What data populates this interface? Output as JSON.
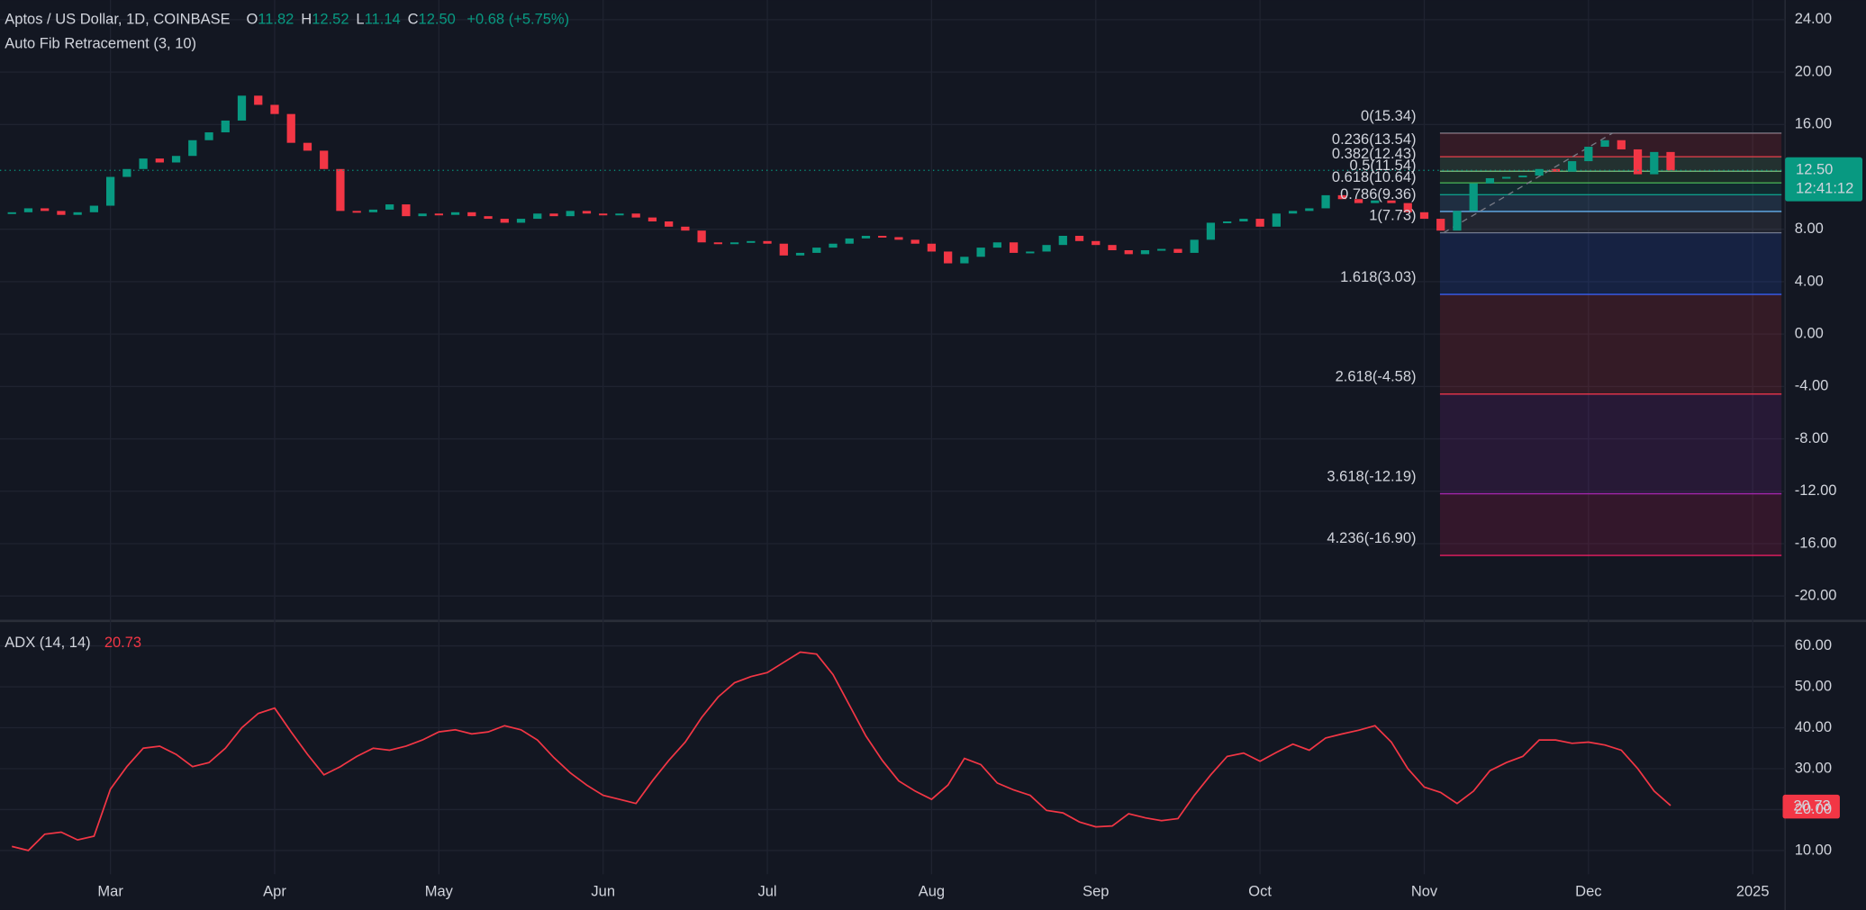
{
  "chart_data": [
    {
      "type": "candlestick",
      "title": "Aptos / US Dollar, 1D, COINBASE",
      "ohlc": [
        {
          "key": "O",
          "value": "11.82"
        },
        {
          "key": "H",
          "value": "12.52"
        },
        {
          "key": "L",
          "value": "11.14"
        },
        {
          "key": "C",
          "value": "12.50"
        }
      ],
      "change": "+0.68 (+5.75%)",
      "indicator": "Auto Fib Retracement (3, 10)",
      "categories": [
        null,
        null,
        null,
        null,
        null,
        null,
        "Mar",
        null,
        null,
        null,
        null,
        null,
        null,
        null,
        null,
        null,
        "Apr",
        null,
        null,
        null,
        null,
        null,
        null,
        null,
        null,
        null,
        "May",
        null,
        null,
        null,
        null,
        null,
        null,
        null,
        null,
        null,
        "Jun",
        null,
        null,
        null,
        null,
        null,
        null,
        null,
        null,
        null,
        "Jul",
        null,
        null,
        null,
        null,
        null,
        null,
        null,
        null,
        null,
        "Aug",
        null,
        null,
        null,
        null,
        null,
        null,
        null,
        null,
        null,
        "Sep",
        null,
        null,
        null,
        null,
        null,
        null,
        null,
        null,
        null,
        "Oct",
        null,
        null,
        null,
        null,
        null,
        null,
        null,
        null,
        null,
        "Nov",
        null,
        null,
        null,
        null,
        null,
        null,
        null,
        null,
        null,
        "Dec",
        null,
        null,
        null,
        null,
        null,
        null,
        null,
        null,
        null,
        "2025"
      ],
      "values": [
        9.3,
        9.6,
        9.4,
        9.1,
        9.3,
        9.8,
        12.0,
        12.6,
        13.4,
        13.1,
        13.6,
        14.8,
        15.4,
        16.3,
        18.2,
        17.5,
        16.8,
        14.6,
        14.0,
        12.6,
        9.4,
        9.3,
        9.5,
        9.9,
        9.0,
        9.2,
        9.1,
        9.3,
        9.0,
        8.8,
        8.5,
        8.8,
        9.2,
        9.0,
        9.4,
        9.2,
        9.1,
        9.2,
        8.9,
        8.6,
        8.2,
        7.9,
        7.0,
        6.9,
        7.0,
        7.1,
        6.9,
        6.0,
        6.2,
        6.6,
        6.9,
        7.3,
        7.5,
        7.4,
        7.2,
        6.9,
        6.3,
        5.4,
        5.9,
        6.6,
        7.0,
        6.2,
        6.3,
        6.8,
        7.5,
        7.1,
        6.8,
        6.4,
        6.1,
        6.4,
        6.5,
        6.2,
        7.2,
        8.5,
        8.6,
        8.8,
        8.2,
        9.2,
        9.4,
        9.6,
        10.6,
        10.3,
        10.0,
        10.2,
        10.0,
        9.3,
        8.8,
        7.9,
        9.4,
        11.5,
        11.9,
        12.0,
        12.1,
        12.6,
        12.4,
        13.2,
        14.3,
        14.8,
        14.1,
        12.2,
        13.9,
        12.5,
        null,
        null,
        null,
        null,
        null
      ],
      "up_color": "#089981",
      "down_color": "#f23645",
      "ylim": [
        -21.9,
        25.5
      ],
      "yticks": [
        {
          "value": 24,
          "label": "24.00"
        },
        {
          "value": 20,
          "label": "20.00"
        },
        {
          "value": 16,
          "label": "16.00"
        },
        {
          "value": 8,
          "label": "8.00"
        },
        {
          "value": 4,
          "label": "4.00"
        },
        {
          "value": 0,
          "label": "0.00"
        },
        {
          "value": -4,
          "label": "-4.00"
        },
        {
          "value": -8,
          "label": "-8.00"
        },
        {
          "value": -12,
          "label": "-12.00"
        },
        {
          "value": -16,
          "label": "-16.00"
        },
        {
          "value": -20,
          "label": "-20.00"
        }
      ],
      "grid": true,
      "last_price": {
        "value": 12.5,
        "label": "12.50"
      },
      "countdown": "12:41:12",
      "fib": [
        {
          "label": "0(15.34)",
          "value": 15.34,
          "color": "#787b86"
        },
        {
          "label": "0.236(13.54)",
          "value": 13.54,
          "color": "#f23645"
        },
        {
          "label": "0.382(12.43)",
          "value": 12.43,
          "color": "#81c784"
        },
        {
          "label": "0.5(11.54)",
          "value": 11.54,
          "color": "#4caf50"
        },
        {
          "label": "0.618(10.64)",
          "value": 10.64,
          "color": "#089981"
        },
        {
          "label": "0.786(9.36)",
          "value": 9.36,
          "color": "#64b5f6"
        },
        {
          "label": "1(7.73)",
          "value": 7.73,
          "color": "#787b86"
        },
        {
          "label": "1.618(3.03)",
          "value": 3.03,
          "color": "#2962ff"
        },
        {
          "label": "2.618(-4.58)",
          "value": -4.58,
          "color": "#f23645"
        },
        {
          "label": "3.618(-12.19)",
          "value": -12.19,
          "color": "#9c27b0"
        },
        {
          "label": "4.236(-16.90)",
          "value": -16.9,
          "color": "#e91e63"
        }
      ]
    },
    {
      "type": "line",
      "title": "ADX (14, 14)",
      "values": [
        11.0,
        10.0,
        14.0,
        14.5,
        12.6,
        13.5,
        25.0,
        30.5,
        35.0,
        35.5,
        33.5,
        30.5,
        31.5,
        35.0,
        40.0,
        43.5,
        44.8,
        39.0,
        33.5,
        28.5,
        30.5,
        33.0,
        35.0,
        34.5,
        35.5,
        37.0,
        39.0,
        39.5,
        38.5,
        39.0,
        40.5,
        39.5,
        37.0,
        32.7,
        29.0,
        26.0,
        23.5,
        22.5,
        21.5,
        27.0,
        32.0,
        36.5,
        42.5,
        47.5,
        51.0,
        52.5,
        53.5,
        56.0,
        58.5,
        58.0,
        53.0,
        45.5,
        38.0,
        32.0,
        27.0,
        24.5,
        22.5,
        26.0,
        32.5,
        31.0,
        26.5,
        24.8,
        23.5,
        19.8,
        19.2,
        17.0,
        15.8,
        16.0,
        19.0,
        18.0,
        17.3,
        17.8,
        23.5,
        28.5,
        33.0,
        33.8,
        31.8,
        34.0,
        36.0,
        34.5,
        37.5,
        38.5,
        39.4,
        40.5,
        36.5,
        30.0,
        25.5,
        24.2,
        21.5,
        24.5,
        29.5,
        31.5,
        33.0,
        37.0,
        37.0,
        36.2,
        36.5,
        35.8,
        34.5,
        30.0,
        24.5,
        21.0,
        null,
        null,
        null,
        null,
        null
      ],
      "color": "#f23645",
      "ylim": [
        4.2,
        66.1
      ],
      "yticks": [
        {
          "value": 60,
          "label": "60.00"
        },
        {
          "value": 50,
          "label": "50.00"
        },
        {
          "value": 40,
          "label": "40.00"
        },
        {
          "value": 30,
          "label": "30.00"
        },
        {
          "value": 20,
          "label": "20.00"
        },
        {
          "value": 10,
          "label": "10.00"
        }
      ],
      "grid": true,
      "last_value": {
        "value": 20.73,
        "label": "20.73"
      }
    }
  ]
}
